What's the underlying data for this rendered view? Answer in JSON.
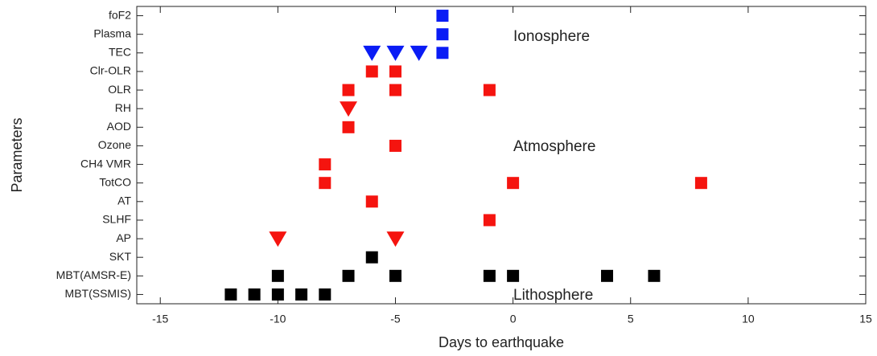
{
  "chart_data": {
    "type": "scatter",
    "xlabel": "Days to earthquake",
    "ylabel": "Parameters",
    "xlim": [
      -16,
      15
    ],
    "xticks": [
      -15,
      -10,
      -5,
      0,
      5,
      10,
      15
    ],
    "categories": [
      "foF2",
      "Plasma",
      "TEC",
      "Clr-OLR",
      "OLR",
      "RH",
      "AOD",
      "Ozone",
      "CH4 VMR",
      "TotCO",
      "AT",
      "SLHF",
      "AP",
      "SKT",
      "MBT(AMSR-E)",
      "MBT(SSMIS)"
    ],
    "annotations": [
      "Ionosphere",
      "Atmosphere",
      "Lithosphere"
    ],
    "series": [
      {
        "color": "#0a1cf5",
        "marker": "square",
        "x": [
          -3,
          -3,
          -3
        ],
        "y": [
          "foF2",
          "Plasma",
          "TEC"
        ]
      },
      {
        "color": "#0a1cf5",
        "marker": "triangle-down",
        "x": [
          -6,
          -5,
          -4
        ],
        "y": [
          "TEC",
          "TEC",
          "TEC"
        ]
      },
      {
        "color": "#f5140f",
        "marker": "square",
        "x": [
          -6,
          -5,
          -7,
          -5,
          -1,
          -7,
          -5,
          -8,
          -8,
          0,
          8,
          -6,
          -1
        ],
        "y": [
          "Clr-OLR",
          "Clr-OLR",
          "OLR",
          "OLR",
          "OLR",
          "AOD",
          "Ozone",
          "CH4 VMR",
          "TotCO",
          "TotCO",
          "TotCO",
          "AT",
          "SLHF"
        ]
      },
      {
        "color": "#f5140f",
        "marker": "triangle-down",
        "x": [
          -7,
          -10,
          -5
        ],
        "y": [
          "RH",
          "AP",
          "AP"
        ]
      },
      {
        "color": "#000000",
        "marker": "square",
        "x": [
          -6,
          -10,
          -7,
          -5,
          -1,
          0,
          4,
          6,
          -12,
          -11,
          -10,
          -9,
          -8
        ],
        "y": [
          "SKT",
          "MBT(AMSR-E)",
          "MBT(AMSR-E)",
          "MBT(AMSR-E)",
          "MBT(AMSR-E)",
          "MBT(AMSR-E)",
          "MBT(AMSR-E)",
          "MBT(AMSR-E)",
          "MBT(SSMIS)",
          "MBT(SSMIS)",
          "MBT(SSMIS)",
          "MBT(SSMIS)",
          "MBT(SSMIS)"
        ]
      }
    ]
  }
}
